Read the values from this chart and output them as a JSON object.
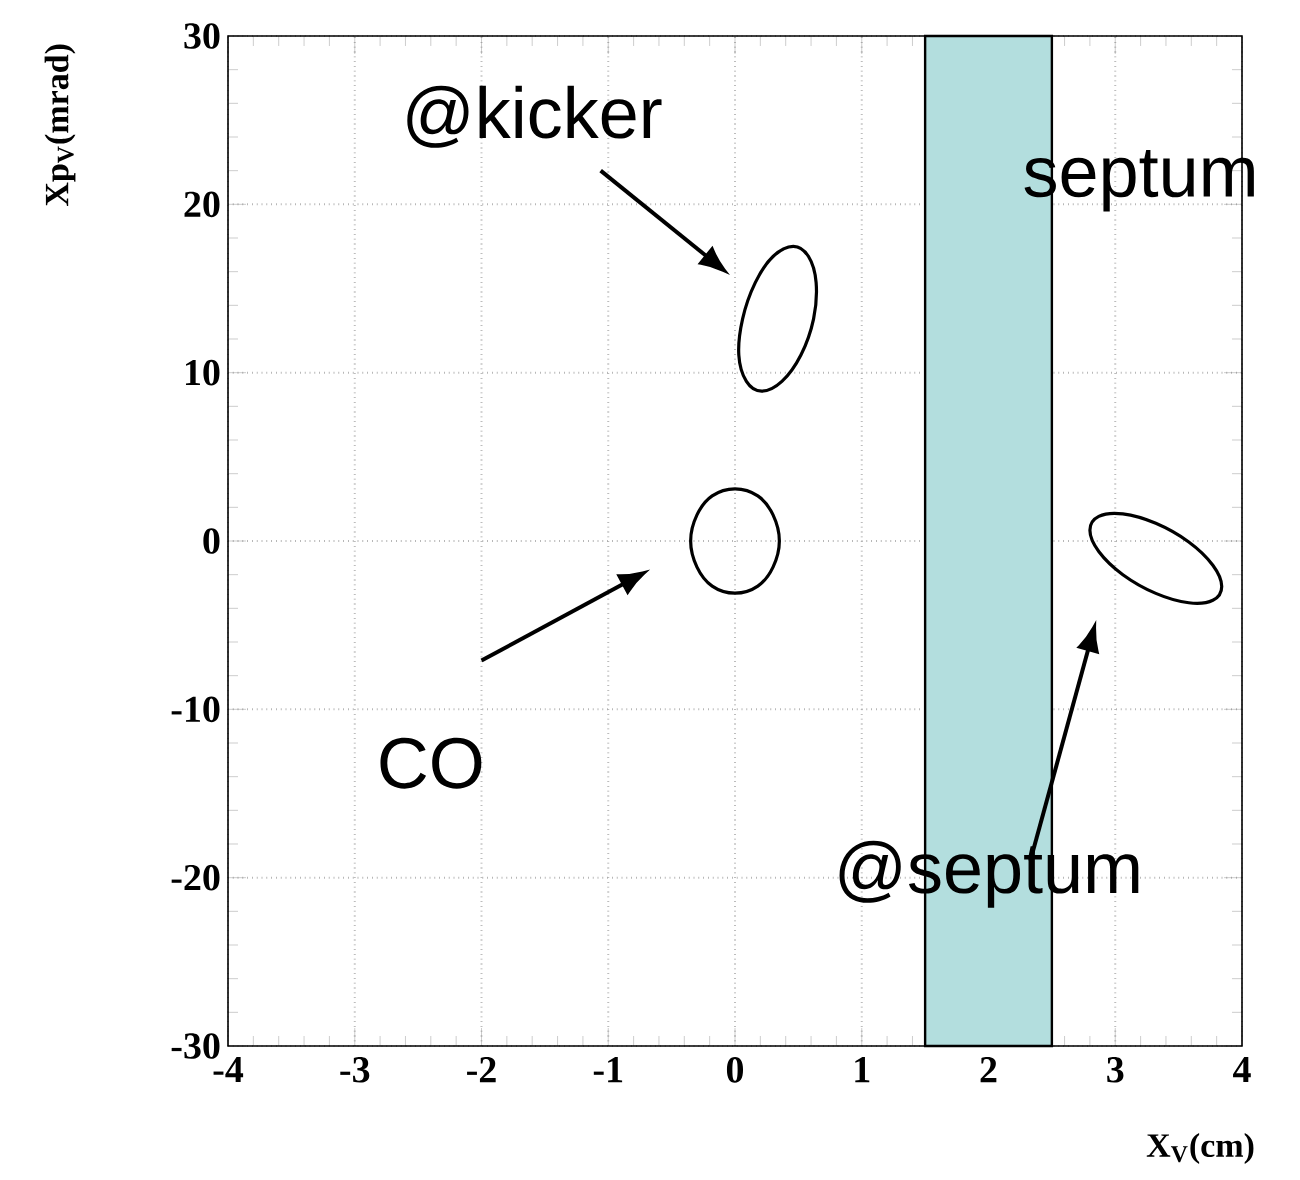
{
  "chart_data": {
    "type": "line",
    "xlabel": "X$_{V}$(cm)",
    "ylabel": "Xp$_{V}$(mrad)",
    "xlim": [
      -4,
      4
    ],
    "ylim": [
      -30,
      30
    ],
    "xticks": [
      -4,
      -3,
      -2,
      -1,
      0,
      1,
      2,
      3,
      4
    ],
    "yticks": [
      -30,
      -20,
      -10,
      0,
      10,
      20,
      30
    ],
    "grid": true,
    "bands": [
      {
        "axis": "x",
        "from": 1.5,
        "to": 2.5,
        "label": "septum",
        "color": "#b3dede"
      }
    ],
    "annotations": [
      "@kicker",
      "CO",
      "@septum"
    ]
  }
}
